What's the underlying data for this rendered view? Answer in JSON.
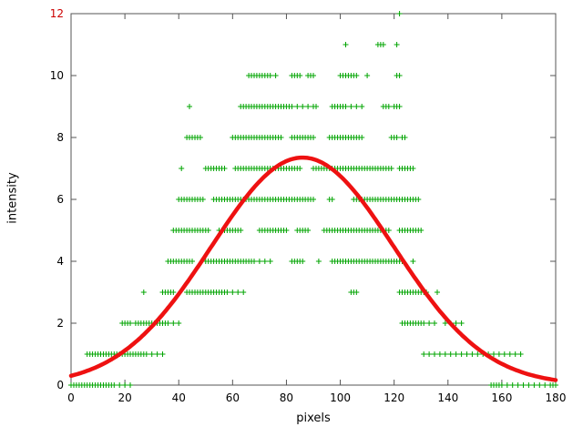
{
  "chart_data": {
    "type": "scatter",
    "title": "",
    "xlabel": "pixels",
    "ylabel": "intensity",
    "xlim": [
      0,
      180
    ],
    "ylim": [
      0,
      12
    ],
    "grid": false,
    "legend": "none",
    "x_ticks": [
      0,
      20,
      40,
      60,
      80,
      100,
      120,
      140,
      160,
      180
    ],
    "y_ticks": [
      0,
      2,
      4,
      6,
      8,
      10,
      12
    ],
    "y_tick_colors": [
      "#000000",
      "#000000",
      "#000000",
      "#000000",
      "#000000",
      "#000000",
      "#cc0000"
    ],
    "axis_color": "#555555",
    "tick_label_color": "#000000",
    "scatter": {
      "marker": "plus",
      "color": "#00a400",
      "rows": {
        "0": [
          0,
          1,
          2,
          3,
          4,
          5,
          6,
          7,
          8,
          9,
          10,
          11,
          12,
          13,
          14,
          15,
          16,
          18,
          20,
          22,
          156,
          157,
          158,
          159,
          160,
          162,
          164,
          166,
          168,
          170,
          172,
          174,
          176,
          178,
          179,
          180
        ],
        "1": [
          6,
          7,
          8,
          9,
          10,
          11,
          12,
          13,
          14,
          15,
          16,
          17,
          18,
          19,
          20,
          21,
          22,
          23,
          24,
          25,
          26,
          27,
          28,
          30,
          32,
          34,
          131,
          133,
          135,
          137,
          139,
          141,
          143,
          145,
          147,
          149,
          151,
          153,
          155,
          157,
          159,
          161,
          163,
          165,
          167
        ],
        "2": [
          19,
          20,
          21,
          22,
          24,
          25,
          26,
          27,
          28,
          29,
          30,
          31,
          32,
          33,
          34,
          35,
          36,
          38,
          40,
          123,
          124,
          125,
          126,
          127,
          128,
          129,
          130,
          131,
          133,
          135,
          139,
          141,
          143,
          145
        ],
        "3": [
          27,
          34,
          35,
          36,
          37,
          38,
          43,
          44,
          45,
          46,
          47,
          48,
          49,
          50,
          51,
          52,
          53,
          54,
          55,
          56,
          57,
          58,
          60,
          62,
          64,
          104,
          105,
          106,
          122,
          123,
          124,
          125,
          126,
          127,
          128,
          129,
          130,
          131,
          132,
          136
        ],
        "4": [
          36,
          37,
          38,
          39,
          40,
          41,
          42,
          43,
          44,
          45,
          50,
          51,
          52,
          53,
          54,
          55,
          56,
          57,
          58,
          59,
          60,
          61,
          62,
          63,
          64,
          65,
          66,
          67,
          68,
          70,
          72,
          74,
          82,
          83,
          84,
          85,
          86,
          92,
          97,
          98,
          99,
          100,
          101,
          102,
          103,
          104,
          105,
          106,
          107,
          108,
          109,
          110,
          111,
          112,
          113,
          114,
          115,
          116,
          117,
          118,
          119,
          120,
          121,
          122,
          123,
          127
        ],
        "5": [
          38,
          39,
          40,
          41,
          42,
          43,
          44,
          45,
          46,
          47,
          48,
          49,
          50,
          51,
          55,
          56,
          57,
          58,
          59,
          60,
          61,
          62,
          63,
          70,
          71,
          72,
          73,
          74,
          75,
          76,
          77,
          78,
          79,
          80,
          84,
          85,
          86,
          87,
          88,
          94,
          95,
          96,
          97,
          98,
          99,
          100,
          101,
          102,
          103,
          104,
          105,
          106,
          107,
          108,
          109,
          110,
          111,
          112,
          113,
          114,
          115,
          116,
          117,
          118,
          122,
          123,
          124,
          125,
          126,
          127,
          128,
          129,
          130
        ],
        "6": [
          40,
          41,
          42,
          43,
          44,
          45,
          46,
          47,
          48,
          49,
          53,
          54,
          55,
          56,
          57,
          58,
          59,
          60,
          61,
          62,
          63,
          64,
          65,
          66,
          67,
          68,
          69,
          70,
          71,
          72,
          73,
          74,
          75,
          76,
          77,
          78,
          79,
          80,
          81,
          82,
          83,
          84,
          85,
          86,
          87,
          88,
          89,
          90,
          96,
          97,
          105,
          106,
          107,
          108,
          109,
          110,
          111,
          112,
          113,
          114,
          115,
          116,
          117,
          118,
          119,
          120,
          121,
          122,
          123,
          124,
          125,
          126,
          127,
          128,
          129
        ],
        "7": [
          41,
          50,
          51,
          52,
          53,
          54,
          55,
          56,
          57,
          61,
          62,
          63,
          64,
          65,
          66,
          67,
          68,
          69,
          70,
          71,
          72,
          73,
          74,
          75,
          76,
          77,
          78,
          79,
          80,
          81,
          82,
          83,
          84,
          85,
          90,
          91,
          92,
          93,
          94,
          95,
          96,
          97,
          98,
          99,
          100,
          101,
          102,
          103,
          104,
          105,
          106,
          107,
          108,
          109,
          110,
          111,
          112,
          113,
          114,
          115,
          116,
          117,
          118,
          119,
          122,
          123,
          124,
          125,
          126,
          127
        ],
        "8": [
          43,
          44,
          45,
          46,
          47,
          48,
          60,
          61,
          62,
          63,
          64,
          65,
          66,
          67,
          68,
          69,
          70,
          71,
          72,
          73,
          74,
          75,
          76,
          77,
          78,
          82,
          83,
          84,
          85,
          86,
          87,
          88,
          89,
          90,
          96,
          97,
          98,
          99,
          100,
          101,
          102,
          103,
          104,
          105,
          106,
          107,
          108,
          119,
          120,
          121,
          123,
          124
        ],
        "9": [
          44,
          63,
          64,
          65,
          66,
          67,
          68,
          69,
          70,
          71,
          72,
          73,
          74,
          75,
          76,
          77,
          78,
          79,
          80,
          81,
          82,
          84,
          86,
          88,
          90,
          91,
          97,
          98,
          99,
          100,
          101,
          102,
          104,
          106,
          108,
          116,
          117,
          118,
          120,
          121,
          122
        ],
        "10": [
          66,
          67,
          68,
          69,
          70,
          71,
          72,
          73,
          74,
          76,
          82,
          83,
          84,
          85,
          88,
          89,
          90,
          100,
          101,
          102,
          103,
          104,
          105,
          106,
          110,
          121,
          122
        ],
        "11": [
          102,
          114,
          115,
          116,
          121
        ],
        "12": [
          122
        ]
      }
    },
    "fit_curve": {
      "model": "gaussian",
      "amplitude": 7.35,
      "mean": 86,
      "sigma": 34,
      "color": "#ee1111",
      "width": 4.5
    }
  }
}
